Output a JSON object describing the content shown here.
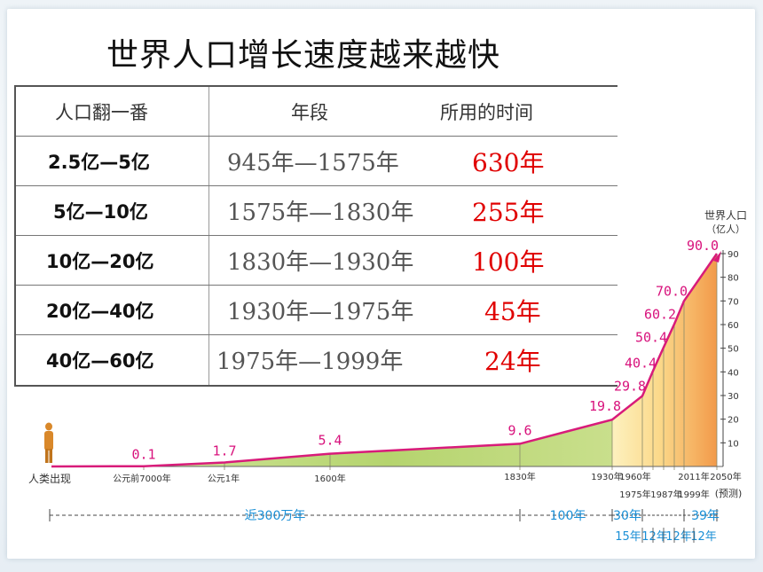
{
  "title": "世界人口增长速度越来越快",
  "table": {
    "headers": [
      "人口翻一番",
      "年段",
      "所用的时间"
    ],
    "rows": [
      {
        "range": "2.5亿—5亿",
        "period": "945年—1575年",
        "time": "630年"
      },
      {
        "range": "5亿—10亿",
        "period": "1575年—1830年",
        "time": "255年"
      },
      {
        "range": "10亿—20亿",
        "period": "1830年—1930年",
        "time": "100年"
      },
      {
        "range": "20亿—40亿",
        "period": "1930年—1975年",
        "time": "45年"
      },
      {
        "range": "40亿—60亿",
        "period": "1975年—1999年",
        "time": "24年"
      }
    ]
  },
  "chart_data": {
    "type": "area",
    "ylabel": "世界人口",
    "yunit": "（亿人）",
    "ylim": [
      0,
      90
    ],
    "yticks": [
      10,
      20,
      30,
      40,
      50,
      60,
      70,
      80,
      90
    ],
    "x": [
      "人类出现",
      "公元前7000年",
      "公元1年",
      "1600年",
      "1830年",
      "1930年",
      "1960年",
      "1975年",
      "1987年",
      "1999年",
      "2011年",
      "2050年"
    ],
    "x_extra_label": "(预测)",
    "values": [
      0,
      0.1,
      1.7,
      5.4,
      9.6,
      19.8,
      29.8,
      40.4,
      50.4,
      60.2,
      70.0,
      90.0
    ],
    "value_labels": [
      "",
      "0.1",
      "1.7",
      "5.4",
      "9.6",
      "19.8",
      "29.8",
      "40.4",
      "50.4",
      "60.2",
      "70.0",
      "90.0"
    ],
    "spans": [
      {
        "label": "近300万年"
      },
      {
        "label": "100年"
      },
      {
        "label": "30年"
      },
      {
        "label": "39年"
      }
    ],
    "subspans": [
      "15年",
      "12年",
      "12年",
      "12年"
    ],
    "colors": {
      "line": "#d81b7a",
      "area_green": "#b5d46e",
      "area_orange": "#f29a4a",
      "area_yellow": "#fbe7a0",
      "labels": "#d8127c"
    }
  }
}
